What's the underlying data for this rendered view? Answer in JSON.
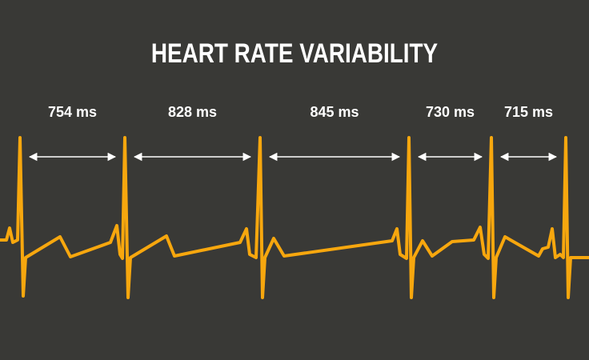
{
  "title": "HEART RATE VARIABILITY",
  "colors": {
    "background": "#393936",
    "trace": "#f7a70e",
    "text": "#ffffff",
    "arrow": "#ffffff"
  },
  "intervals": [
    {
      "label": "754 ms",
      "value_ms": 754
    },
    {
      "label": "828 ms",
      "value_ms": 828
    },
    {
      "label": "845 ms",
      "value_ms": 845
    },
    {
      "label": "730 ms",
      "value_ms": 730
    },
    {
      "label": "715 ms",
      "value_ms": 715
    }
  ]
}
